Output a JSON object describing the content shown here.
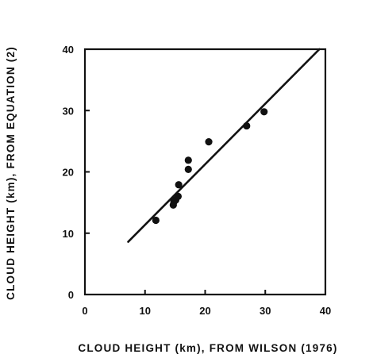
{
  "chart_data": {
    "type": "scatter",
    "xlabel": "CLOUD HEIGHT (km), FROM WILSON (1976)",
    "ylabel": "CLOUD HEIGHT (km), FROM EQUATION (2)",
    "xlim": [
      0,
      40
    ],
    "ylim": [
      0,
      40
    ],
    "x_ticks": [
      "0",
      "10",
      "20",
      "30",
      "40"
    ],
    "y_ticks": [
      "0",
      "10",
      "20",
      "30",
      "40"
    ],
    "grid": false,
    "points": [
      {
        "x": 11.8,
        "y": 12.1
      },
      {
        "x": 14.7,
        "y": 14.6
      },
      {
        "x": 14.8,
        "y": 15.1
      },
      {
        "x": 15.1,
        "y": 15.4
      },
      {
        "x": 15.5,
        "y": 16.0
      },
      {
        "x": 15.6,
        "y": 17.9
      },
      {
        "x": 17.2,
        "y": 20.4
      },
      {
        "x": 17.2,
        "y": 21.9
      },
      {
        "x": 20.6,
        "y": 24.9
      },
      {
        "x": 26.9,
        "y": 27.5
      },
      {
        "x": 29.8,
        "y": 29.8
      }
    ],
    "fit_line": {
      "x": [
        7.2,
        39.0
      ],
      "y": [
        8.6,
        40.0
      ]
    },
    "colors": {
      "marks": "#111111",
      "background": "#ffffff"
    }
  }
}
